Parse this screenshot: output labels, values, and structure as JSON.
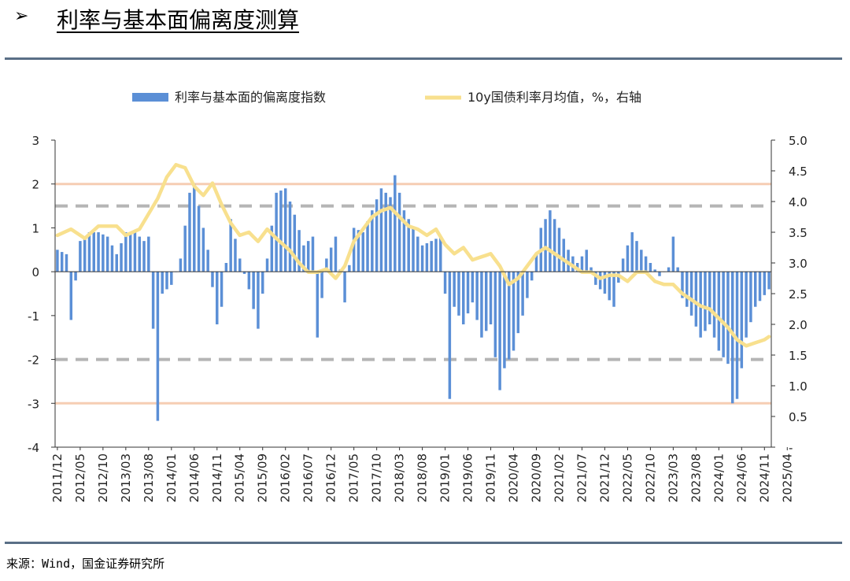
{
  "header": {
    "arrow": "➢",
    "title": "利率与基本面偏离度测算"
  },
  "source": "来源：Wind，国金证券研究所",
  "colors": {
    "bar": "#5b8fd6",
    "line": "#f8e08e",
    "ref_orange": "#f6cdb3",
    "ref_gray": "#b5b5b5",
    "rule": "#5a6f86"
  },
  "chart_data": {
    "type": "bar+line",
    "legend": [
      {
        "name": "利率与基本面的偏离度指数",
        "kind": "bar"
      },
      {
        "name": "10y国债利率月均值，%，右轴",
        "kind": "line"
      }
    ],
    "y_left": {
      "min": -4,
      "max": 3,
      "ticks": [
        "3",
        "2",
        "1",
        "0",
        "-1",
        "-2",
        "-3",
        "-4"
      ]
    },
    "y_right": {
      "min": 0,
      "max": 5,
      "ticks": [
        "5.0",
        "4.5",
        "4.0",
        "3.5",
        "3.0",
        "2.5",
        "2.0",
        "1.5",
        "1.0",
        "0.5",
        "-"
      ]
    },
    "reference_lines": [
      {
        "value": 2,
        "style": "solid",
        "color": "orange"
      },
      {
        "value": -3,
        "style": "solid",
        "color": "orange"
      },
      {
        "value": 1.5,
        "style": "dashed",
        "color": "gray"
      },
      {
        "value": -2,
        "style": "dashed",
        "color": "gray"
      }
    ],
    "x_labels": [
      "2011/12",
      "2012/05",
      "2012/10",
      "2013/03",
      "2013/08",
      "2014/01",
      "2014/06",
      "2014/11",
      "2015/04",
      "2015/09",
      "2016/02",
      "2016/07",
      "2016/12",
      "2017/05",
      "2017/10",
      "2018/03",
      "2018/08",
      "2019/01",
      "2019/06",
      "2019/11",
      "2020/04",
      "2020/09",
      "2021/02",
      "2021/07",
      "2021/12",
      "2022/05",
      "2022/10",
      "2023/03",
      "2023/08",
      "2024/01",
      "2024/06",
      "2024/11",
      "2025/04"
    ],
    "bar_anchors": [
      [
        0,
        0.5
      ],
      [
        2,
        0.4
      ],
      [
        3,
        -1.1
      ],
      [
        5,
        0.7
      ],
      [
        7,
        0.9
      ],
      [
        9,
        0.9
      ],
      [
        11,
        0.8
      ],
      [
        13,
        0.4
      ],
      [
        15,
        0.9
      ],
      [
        17,
        0.9
      ],
      [
        19,
        0.7
      ],
      [
        20,
        0.8
      ],
      [
        22,
        -3.4
      ],
      [
        23,
        -0.5
      ],
      [
        25,
        -0.3
      ],
      [
        27,
        0.3
      ],
      [
        29,
        1.8
      ],
      [
        30,
        2.0
      ],
      [
        31,
        1.5
      ],
      [
        33,
        0.5
      ],
      [
        35,
        -1.2
      ],
      [
        36,
        -0.8
      ],
      [
        38,
        1.2
      ],
      [
        40,
        0.3
      ],
      [
        42,
        -0.4
      ],
      [
        44,
        -1.3
      ],
      [
        46,
        0.3
      ],
      [
        48,
        1.8
      ],
      [
        50,
        1.9
      ],
      [
        52,
        1.3
      ],
      [
        54,
        0.6
      ],
      [
        56,
        0.8
      ],
      [
        57,
        -1.5
      ],
      [
        59,
        0.3
      ],
      [
        61,
        0.8
      ],
      [
        63,
        -0.7
      ],
      [
        65,
        1.0
      ],
      [
        67,
        0.9
      ],
      [
        69,
        1.4
      ],
      [
        71,
        1.9
      ],
      [
        73,
        1.7
      ],
      [
        74,
        2.2
      ],
      [
        76,
        1.4
      ],
      [
        78,
        1.0
      ],
      [
        80,
        0.6
      ],
      [
        82,
        0.7
      ],
      [
        84,
        0.8
      ],
      [
        85,
        -0.5
      ],
      [
        86,
        -2.9
      ],
      [
        87,
        -0.8
      ],
      [
        89,
        -1.2
      ],
      [
        91,
        -0.7
      ],
      [
        93,
        -1.5
      ],
      [
        95,
        -1.2
      ],
      [
        97,
        -2.7
      ],
      [
        98,
        -2.2
      ],
      [
        100,
        -1.8
      ],
      [
        102,
        -1.0
      ],
      [
        104,
        -0.2
      ],
      [
        106,
        1.0
      ],
      [
        108,
        1.4
      ],
      [
        110,
        1.0
      ],
      [
        112,
        0.5
      ],
      [
        114,
        0.2
      ],
      [
        116,
        0.5
      ],
      [
        118,
        -0.3
      ],
      [
        120,
        -0.5
      ],
      [
        122,
        -0.8
      ],
      [
        124,
        0.3
      ],
      [
        126,
        0.9
      ],
      [
        128,
        0.5
      ],
      [
        130,
        0.2
      ],
      [
        132,
        -0.1
      ],
      [
        134,
        0.1
      ],
      [
        135,
        0.8
      ],
      [
        137,
        -0.6
      ],
      [
        139,
        -1.0
      ],
      [
        141,
        -1.5
      ],
      [
        143,
        -1.2
      ],
      [
        145,
        -1.8
      ],
      [
        147,
        -2.1
      ],
      [
        148,
        -3.0
      ],
      [
        149,
        -2.9
      ],
      [
        151,
        -1.5
      ],
      [
        153,
        -0.8
      ],
      [
        156,
        -0.4
      ]
    ],
    "line_anchors": [
      [
        0,
        3.45
      ],
      [
        3,
        3.55
      ],
      [
        6,
        3.4
      ],
      [
        9,
        3.6
      ],
      [
        13,
        3.6
      ],
      [
        15,
        3.45
      ],
      [
        18,
        3.55
      ],
      [
        20,
        3.8
      ],
      [
        22,
        4.05
      ],
      [
        24,
        4.4
      ],
      [
        26,
        4.6
      ],
      [
        28,
        4.55
      ],
      [
        30,
        4.25
      ],
      [
        32,
        4.1
      ],
      [
        34,
        4.3
      ],
      [
        36,
        3.95
      ],
      [
        38,
        3.65
      ],
      [
        40,
        3.45
      ],
      [
        42,
        3.5
      ],
      [
        44,
        3.35
      ],
      [
        46,
        3.55
      ],
      [
        48,
        3.4
      ],
      [
        51,
        3.2
      ],
      [
        53,
        3.0
      ],
      [
        55,
        2.85
      ],
      [
        57,
        2.85
      ],
      [
        59,
        2.9
      ],
      [
        61,
        2.75
      ],
      [
        63,
        2.95
      ],
      [
        65,
        3.35
      ],
      [
        67,
        3.55
      ],
      [
        69,
        3.75
      ],
      [
        71,
        3.85
      ],
      [
        73,
        3.9
      ],
      [
        75,
        3.75
      ],
      [
        77,
        3.6
      ],
      [
        79,
        3.55
      ],
      [
        81,
        3.45
      ],
      [
        83,
        3.55
      ],
      [
        85,
        3.3
      ],
      [
        87,
        3.15
      ],
      [
        89,
        3.25
      ],
      [
        91,
        3.05
      ],
      [
        93,
        3.1
      ],
      [
        95,
        3.15
      ],
      [
        97,
        2.95
      ],
      [
        99,
        2.65
      ],
      [
        101,
        2.75
      ],
      [
        103,
        2.95
      ],
      [
        105,
        3.15
      ],
      [
        107,
        3.25
      ],
      [
        109,
        3.15
      ],
      [
        111,
        3.05
      ],
      [
        113,
        2.95
      ],
      [
        115,
        2.85
      ],
      [
        117,
        2.85
      ],
      [
        119,
        2.75
      ],
      [
        121,
        2.8
      ],
      [
        123,
        2.8
      ],
      [
        125,
        2.7
      ],
      [
        127,
        2.85
      ],
      [
        129,
        2.85
      ],
      [
        131,
        2.7
      ],
      [
        133,
        2.65
      ],
      [
        135,
        2.65
      ],
      [
        137,
        2.5
      ],
      [
        139,
        2.4
      ],
      [
        141,
        2.3
      ],
      [
        143,
        2.25
      ],
      [
        145,
        2.1
      ],
      [
        147,
        1.95
      ],
      [
        149,
        1.75
      ],
      [
        151,
        1.65
      ],
      [
        153,
        1.7
      ],
      [
        155,
        1.75
      ],
      [
        156,
        1.8
      ]
    ],
    "n_periods": 157
  }
}
